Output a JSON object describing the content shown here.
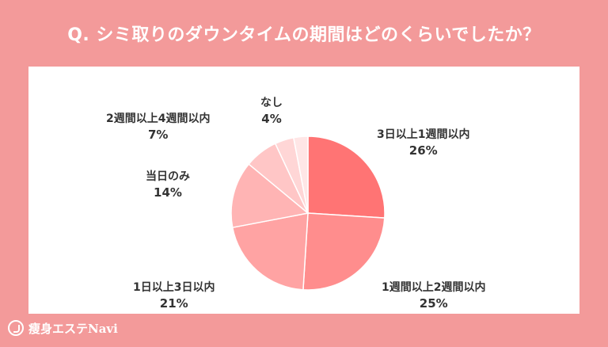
{
  "header": {
    "title": "Q. シミ取りのダウンタイムの期間はどのくらいでしたか？"
  },
  "footer": {
    "brand": "瘦身エステNavi",
    "logo_icon": "leaf-heart-icon"
  },
  "colors": {
    "background": "#f39a9a",
    "panel": "#ffffff",
    "slices": [
      "#ff7474",
      "#ff8d8d",
      "#ffa3a3",
      "#ffb4b4",
      "#ffc6c6",
      "#ffd6d6",
      "#ffe6e6"
    ]
  },
  "chart_data": {
    "type": "pie",
    "title": "",
    "start": "12 o'clock",
    "direction": "clockwise",
    "slices": [
      {
        "label": "3日以上1週間以内",
        "value": 26,
        "display": "26%"
      },
      {
        "label": "1週間以上2週間以内",
        "value": 25,
        "display": "25%"
      },
      {
        "label": "1日以上3日以内",
        "value": 21,
        "display": "21%"
      },
      {
        "label": "当日のみ",
        "value": 14,
        "display": "14%"
      },
      {
        "label": "2週間以上4週間以内",
        "value": 7,
        "display": "7%"
      },
      {
        "label": "なし",
        "value": 4,
        "display": "4%"
      },
      {
        "label": "",
        "value": 3,
        "display": ""
      }
    ]
  }
}
